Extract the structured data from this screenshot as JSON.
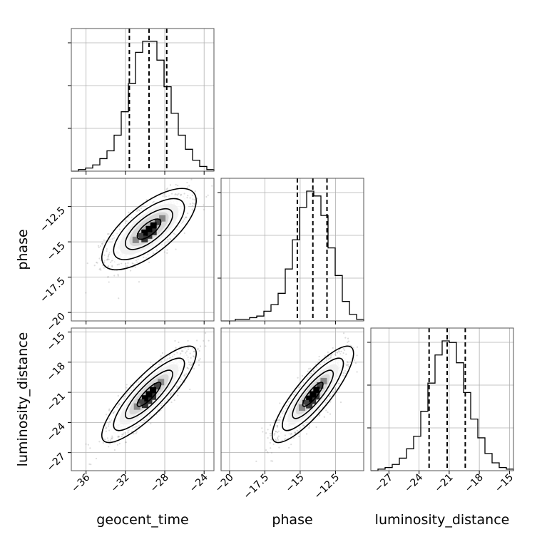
{
  "chart_data": {
    "type": "corner",
    "parameters": [
      {
        "name": "geocent_time",
        "label": "geocent_time",
        "range": [
          -37.5,
          -23.0
        ],
        "ticks": [
          -36,
          -32,
          -28,
          -24
        ],
        "quantiles": [
          -31.6,
          -29.6,
          -27.8
        ],
        "hist_edges_start": -37.5,
        "hist_bin_width": 0.725,
        "hist_counts": [
          0,
          1,
          2,
          4,
          8,
          13,
          23,
          38,
          56,
          76,
          83,
          83,
          71,
          54,
          37,
          23,
          14,
          7,
          3,
          1
        ]
      },
      {
        "name": "phase",
        "label": "phase",
        "range": [
          -20.6,
          -10.5
        ],
        "ticks": [
          -20.0,
          -17.5,
          -15.0,
          -12.5
        ],
        "quantiles": [
          -15.2,
          -14.1,
          -13.1
        ],
        "hist_edges_start": -20.6,
        "hist_bin_width": 0.505,
        "hist_counts": [
          0,
          0,
          1,
          1,
          2,
          3,
          6,
          10,
          17,
          32,
          50,
          70,
          80,
          77,
          65,
          45,
          28,
          12,
          4,
          1
        ]
      },
      {
        "name": "luminosity_distance",
        "label": "luminosity_distance",
        "range": [
          -28.8,
          -14.6
        ],
        "ticks": [
          -27,
          -24,
          -21,
          -18,
          -15
        ],
        "quantiles": [
          -23.0,
          -21.2,
          -19.4
        ],
        "hist_edges_start": -28.8,
        "hist_bin_width": 0.71,
        "hist_counts": [
          0,
          1,
          2,
          4,
          8,
          14,
          22,
          38,
          56,
          74,
          83,
          82,
          69,
          50,
          33,
          21,
          11,
          5,
          2,
          1
        ]
      }
    ],
    "pairs": [
      {
        "x": "geocent_time",
        "y": "phase",
        "mean": [
          -29.6,
          -14.1
        ],
        "sd": [
          2.0,
          1.2
        ],
        "rho": 0.7
      },
      {
        "x": "geocent_time",
        "y": "luminosity_distance",
        "mean": [
          -29.6,
          -21.2
        ],
        "sd": [
          2.0,
          2.0
        ],
        "rho": 0.85
      },
      {
        "x": "phase",
        "y": "luminosity_distance",
        "mean": [
          -14.1,
          -21.2
        ],
        "sd": [
          1.2,
          2.0
        ],
        "rho": 0.85
      }
    ],
    "contour_levels_sigma": [
      0.5,
      1.0,
      1.5,
      2.0
    ],
    "grid": true,
    "legend": "none"
  }
}
